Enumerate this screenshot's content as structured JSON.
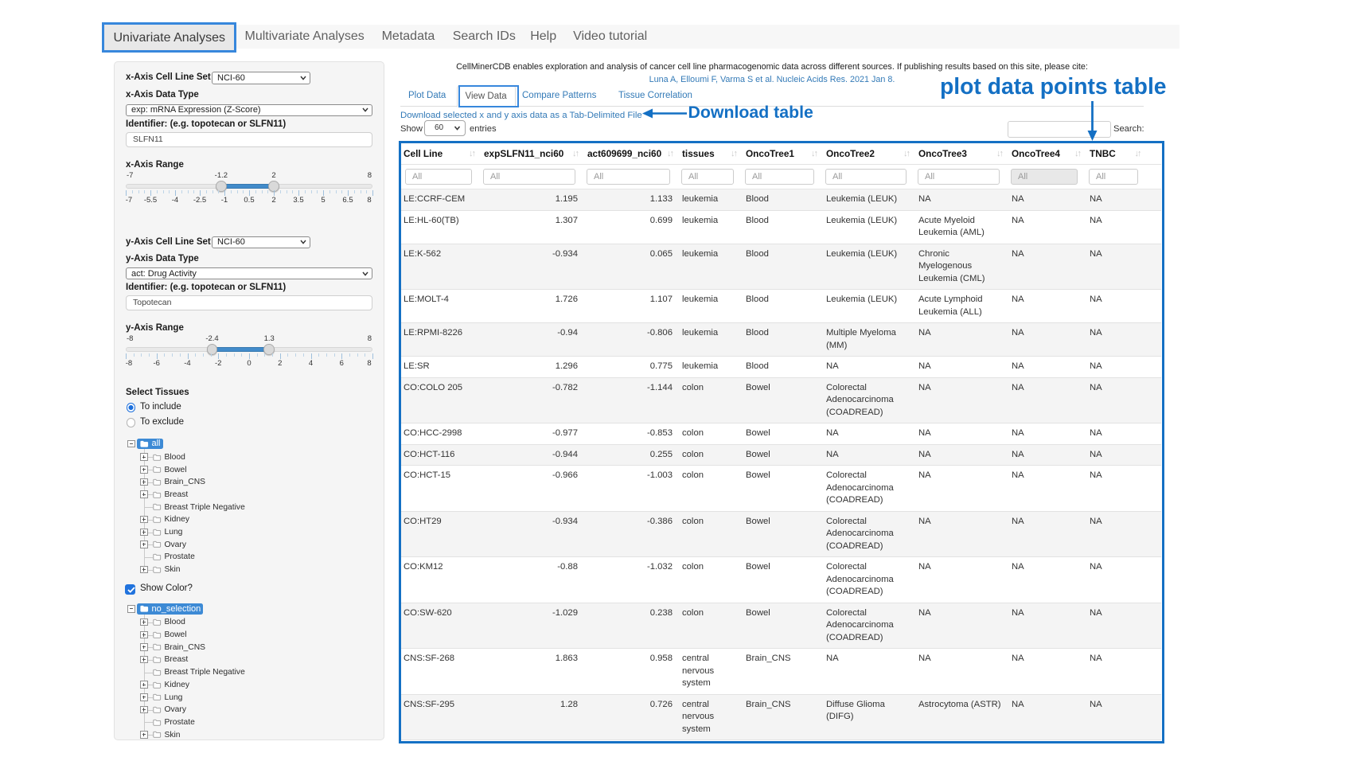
{
  "annotation_color": "#1470C4",
  "annotation_box_color": "#3787DC",
  "navbar": {
    "items": [
      {
        "label": "Univariate Analyses",
        "active": true
      },
      {
        "label": "Multivariate Analyses",
        "active": false
      },
      {
        "label": "Metadata",
        "active": false
      },
      {
        "label": "Search IDs",
        "active": false
      },
      {
        "label": "Help",
        "active": false
      },
      {
        "label": "Video tutorial",
        "active": false
      }
    ]
  },
  "sidebar": {
    "x_axis": {
      "cell_line_set_label": "x-Axis Cell Line Set",
      "cell_line_set_value": "NCI-60",
      "data_type_label": "x-Axis Data Type",
      "data_type_value": "exp: mRNA Expression (Z-Score)",
      "identifier_label": "Identifier: (e.g. topotecan or SLFN11)",
      "identifier_value": "SLFN11",
      "range_label": "x-Axis Range",
      "range": {
        "min": -7,
        "max": 8,
        "from": -1.2,
        "to": 2,
        "from_label": "-1.2",
        "to_label": "2",
        "min_label": "-7",
        "max_label": "8",
        "ticks": [
          "-7",
          "-5.5",
          "-4",
          "-2.5",
          "-1",
          "0.5",
          "2",
          "3.5",
          "5",
          "6.5",
          "8"
        ]
      }
    },
    "y_axis": {
      "cell_line_set_label": "y-Axis Cell Line Set",
      "cell_line_set_value": "NCI-60",
      "data_type_label": "y-Axis Data Type",
      "data_type_value": "act: Drug Activity",
      "identifier_label": "Identifier: (e.g. topotecan or SLFN11)",
      "identifier_value": "Topotecan",
      "range_label": "y-Axis Range",
      "range": {
        "min": -8,
        "max": 8,
        "from": -2.4,
        "to": 1.3,
        "from_label": "-2.4",
        "to_label": "1.3",
        "min_label": "-8",
        "max_label": "8",
        "ticks": [
          "-8",
          "-6",
          "-4",
          "-2",
          "0",
          "2",
          "4",
          "6",
          "8"
        ]
      }
    },
    "select_tissues": {
      "label": "Select Tissues",
      "radio_include": "To include",
      "radio_exclude": "To exclude",
      "include_selected": true
    },
    "show_color_label": "Show Color?",
    "show_color_checked": true,
    "tissue_tree": {
      "root": "all",
      "items": [
        {
          "label": "Blood",
          "expandable": true
        },
        {
          "label": "Bowel",
          "expandable": true
        },
        {
          "label": "Brain_CNS",
          "expandable": true
        },
        {
          "label": "Breast",
          "expandable": true
        },
        {
          "label": "Breast Triple Negative",
          "expandable": false
        },
        {
          "label": "Kidney",
          "expandable": true
        },
        {
          "label": "Lung",
          "expandable": true
        },
        {
          "label": "Ovary",
          "expandable": true
        },
        {
          "label": "Prostate",
          "expandable": false
        },
        {
          "label": "Skin",
          "expandable": true
        }
      ]
    },
    "color_tree": {
      "root": "no_selection",
      "items": [
        {
          "label": "Blood",
          "expandable": true
        },
        {
          "label": "Bowel",
          "expandable": true
        },
        {
          "label": "Brain_CNS",
          "expandable": true
        },
        {
          "label": "Breast",
          "expandable": true
        },
        {
          "label": "Breast Triple Negative",
          "expandable": false
        },
        {
          "label": "Kidney",
          "expandable": true
        },
        {
          "label": "Lung",
          "expandable": true
        },
        {
          "label": "Ovary",
          "expandable": true
        },
        {
          "label": "Prostate",
          "expandable": false
        },
        {
          "label": "Skin",
          "expandable": true
        }
      ]
    }
  },
  "main": {
    "citation_line1": "CellMinerCDB enables exploration and analysis of cancer cell line pharmacogenomic data across different sources. If publishing results based on this site, please cite:",
    "citation_line2": "Luna A, Elloumi F, Varma S et al. Nucleic Acids Res. 2021 Jan 8.",
    "tabs": [
      {
        "label": "Plot Data",
        "active": false
      },
      {
        "label": "View Data",
        "active": true
      },
      {
        "label": "Compare Patterns",
        "active": false
      },
      {
        "label": "Tissue Correlation",
        "active": false
      }
    ],
    "download_link": "Download selected x and y axis data as a Tab-Delimited File",
    "show_label": "Show",
    "show_value": "60",
    "entries_label": "entries",
    "search_label": "Search:",
    "search_value": ""
  },
  "table": {
    "columns": [
      "Cell Line",
      "expSLFN11_nci60",
      "act609699_nci60",
      "tissues",
      "OncoTree1",
      "OncoTree2",
      "OncoTree3",
      "OncoTree4",
      "TNBC"
    ],
    "filter_placeholder": "All",
    "shaded_filter_column": "OncoTree4",
    "rows": [
      [
        "LE:CCRF-CEM",
        "1.195",
        "1.133",
        "leukemia",
        "Blood",
        "Leukemia (LEUK)",
        "NA",
        "NA",
        "NA"
      ],
      [
        "LE:HL-60(TB)",
        "1.307",
        "0.699",
        "leukemia",
        "Blood",
        "Leukemia (LEUK)",
        "Acute Myeloid Leukemia (AML)",
        "NA",
        "NA"
      ],
      [
        "LE:K-562",
        "-0.934",
        "0.065",
        "leukemia",
        "Blood",
        "Leukemia (LEUK)",
        "Chronic Myelogenous Leukemia (CML)",
        "NA",
        "NA"
      ],
      [
        "LE:MOLT-4",
        "1.726",
        "1.107",
        "leukemia",
        "Blood",
        "Leukemia (LEUK)",
        "Acute Lymphoid Leukemia (ALL)",
        "NA",
        "NA"
      ],
      [
        "LE:RPMI-8226",
        "-0.94",
        "-0.806",
        "leukemia",
        "Blood",
        "Multiple Myeloma (MM)",
        "NA",
        "NA",
        "NA"
      ],
      [
        "LE:SR",
        "1.296",
        "0.775",
        "leukemia",
        "Blood",
        "NA",
        "NA",
        "NA",
        "NA"
      ],
      [
        "CO:COLO 205",
        "-0.782",
        "-1.144",
        "colon",
        "Bowel",
        "Colorectal Adenocarcinoma (COADREAD)",
        "NA",
        "NA",
        "NA"
      ],
      [
        "CO:HCC-2998",
        "-0.977",
        "-0.853",
        "colon",
        "Bowel",
        "NA",
        "NA",
        "NA",
        "NA"
      ],
      [
        "CO:HCT-116",
        "-0.944",
        "0.255",
        "colon",
        "Bowel",
        "NA",
        "NA",
        "NA",
        "NA"
      ],
      [
        "CO:HCT-15",
        "-0.966",
        "-1.003",
        "colon",
        "Bowel",
        "Colorectal Adenocarcinoma (COADREAD)",
        "NA",
        "NA",
        "NA"
      ],
      [
        "CO:HT29",
        "-0.934",
        "-0.386",
        "colon",
        "Bowel",
        "Colorectal Adenocarcinoma (COADREAD)",
        "NA",
        "NA",
        "NA"
      ],
      [
        "CO:KM12",
        "-0.88",
        "-1.032",
        "colon",
        "Bowel",
        "Colorectal Adenocarcinoma (COADREAD)",
        "NA",
        "NA",
        "NA"
      ],
      [
        "CO:SW-620",
        "-1.029",
        "0.238",
        "colon",
        "Bowel",
        "Colorectal Adenocarcinoma (COADREAD)",
        "NA",
        "NA",
        "NA"
      ],
      [
        "CNS:SF-268",
        "1.863",
        "0.958",
        "central nervous system",
        "Brain_CNS",
        "NA",
        "NA",
        "NA",
        "NA"
      ],
      [
        "CNS:SF-295",
        "1.28",
        "0.726",
        "central nervous system",
        "Brain_CNS",
        "Diffuse Glioma (DIFG)",
        "Astrocytoma (ASTR)",
        "NA",
        "NA"
      ]
    ]
  },
  "annotations": {
    "plot_table_label": "plot data points table",
    "download_label": "Download table"
  }
}
